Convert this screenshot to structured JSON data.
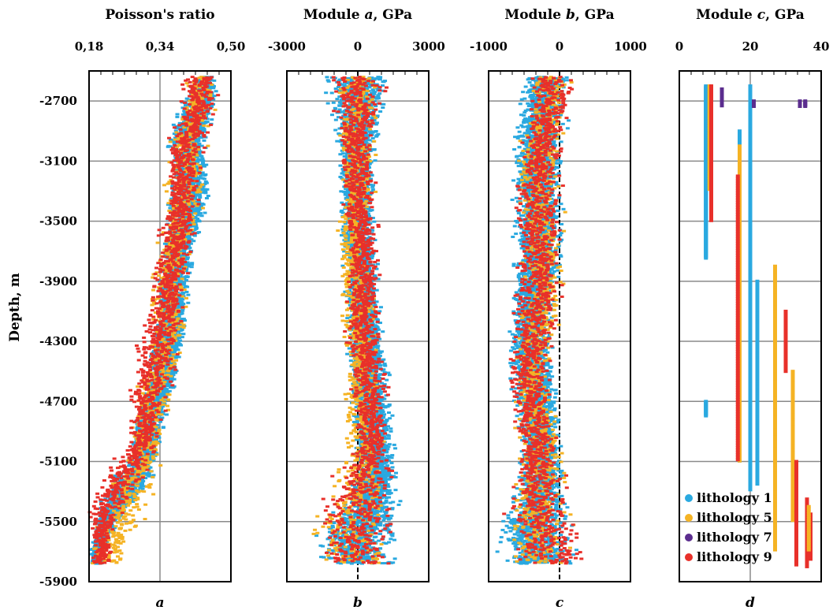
{
  "figure": {
    "ylabel": "Depth, m",
    "y_ticks": [
      -2700,
      -3100,
      -3500,
      -3900,
      -4300,
      -4700,
      -5100,
      -5500,
      -5900
    ],
    "y_tick_labels": [
      "-2700",
      "-3100",
      "-3500",
      "-3900",
      "-4300",
      "-4700",
      "-5100",
      "-5500",
      "-5900"
    ],
    "legend": {
      "placement": "bottom-right of panel d",
      "entries": [
        {
          "label": "lithology  1",
          "color": "#2aa9e0"
        },
        {
          "label": "lithology  5",
          "color": "#f5b324"
        },
        {
          "label": "lithology  7",
          "color": "#5b2d8e"
        },
        {
          "label": "lithology  9",
          "color": "#e8302a"
        }
      ]
    }
  },
  "chart_data": [
    {
      "type": "scatter",
      "panel": "a",
      "title_parts": [
        "Poisson's ratio"
      ],
      "xlim": [
        0.18,
        0.5
      ],
      "x_ticks": [
        0.18,
        0.34,
        0.5
      ],
      "x_tick_labels": [
        "0,18",
        "0,34",
        "0,50"
      ],
      "ylim": [
        -5900,
        -2500
      ],
      "grid": true,
      "series": [
        {
          "name": "lithology  1",
          "color": "#2aa9e0",
          "depth": [
            -2600,
            -2700,
            -2800,
            -2900,
            -3000,
            -3100,
            -3200,
            -3300,
            -3400,
            -3500,
            -3600,
            -3700,
            -3800,
            -3900,
            -4000,
            -4100,
            -4200,
            -4300,
            -4400,
            -4500,
            -4600,
            -4700,
            -4800,
            -4900,
            -5000,
            -5100,
            -5200,
            -5300,
            -5400,
            -5500,
            -5600,
            -5700,
            -5800
          ],
          "center": [
            0.44,
            0.43,
            0.42,
            0.41,
            0.4,
            0.4,
            0.41,
            0.41,
            0.4,
            0.4,
            0.39,
            0.38,
            0.38,
            0.37,
            0.37,
            0.37,
            0.36,
            0.36,
            0.35,
            0.35,
            0.34,
            0.33,
            0.32,
            0.31,
            0.31,
            0.3,
            0.28,
            0.26,
            0.24,
            0.22,
            0.21,
            0.2,
            0.2
          ],
          "spread": [
            0.03,
            0.04,
            0.05,
            0.05,
            0.05,
            0.05,
            0.05,
            0.05,
            0.05,
            0.05,
            0.04,
            0.04,
            0.04,
            0.04,
            0.04,
            0.04,
            0.04,
            0.04,
            0.04,
            0.04,
            0.04,
            0.04,
            0.04,
            0.04,
            0.04,
            0.04,
            0.05,
            0.05,
            0.04,
            0.03,
            0.02,
            0.02,
            0.02
          ]
        },
        {
          "name": "lithology  5",
          "color": "#f5b324",
          "depth": [
            -2700,
            -3000,
            -3300,
            -3600,
            -3900,
            -4200,
            -4500,
            -4800,
            -5100,
            -5400,
            -5700
          ],
          "center": [
            0.43,
            0.4,
            0.4,
            0.38,
            0.36,
            0.36,
            0.34,
            0.32,
            0.3,
            0.26,
            0.22
          ],
          "spread": [
            0.04,
            0.05,
            0.06,
            0.05,
            0.05,
            0.05,
            0.05,
            0.05,
            0.06,
            0.07,
            0.05
          ]
        },
        {
          "name": "lithology  9",
          "color": "#e8302a",
          "depth": [
            -2700,
            -3000,
            -3300,
            -3600,
            -3900,
            -4200,
            -4400,
            -4600,
            -4800,
            -5000,
            -5200,
            -5400,
            -5500,
            -5600,
            -5700,
            -5800
          ],
          "center": [
            0.43,
            0.4,
            0.39,
            0.38,
            0.36,
            0.35,
            0.33,
            0.32,
            0.31,
            0.3,
            0.26,
            0.22,
            0.21,
            0.21,
            0.21,
            0.21
          ],
          "spread": [
            0.05,
            0.05,
            0.05,
            0.05,
            0.05,
            0.06,
            0.06,
            0.06,
            0.05,
            0.05,
            0.06,
            0.05,
            0.04,
            0.03,
            0.03,
            0.03
          ]
        }
      ]
    },
    {
      "type": "scatter",
      "panel": "b",
      "title_parts": [
        "Module ",
        "a",
        ", GPa"
      ],
      "xlim": [
        -3000,
        3000
      ],
      "x_ticks": [
        -3000,
        0,
        3000
      ],
      "x_tick_labels": [
        "-3000",
        "0",
        "3000"
      ],
      "ylim": [
        -5900,
        -2500
      ],
      "grid": true,
      "zero_line": true,
      "series": [
        {
          "name": "lithology  1",
          "color": "#2aa9e0",
          "depth": [
            -2600,
            -2800,
            -3000,
            -3200,
            -3400,
            -3600,
            -3800,
            -4000,
            -4200,
            -4400,
            -4600,
            -4800,
            -5000,
            -5200,
            -5400,
            -5600,
            -5800
          ],
          "center": [
            0,
            0,
            0,
            0,
            0,
            0,
            100,
            200,
            300,
            400,
            500,
            600,
            700,
            800,
            500,
            0,
            0
          ],
          "spread": [
            1500,
            1200,
            1000,
            900,
            900,
            800,
            800,
            800,
            900,
            900,
            1000,
            1000,
            1000,
            1000,
            1500,
            2000,
            2000
          ]
        },
        {
          "name": "lithology  5",
          "color": "#f5b324",
          "depth": [
            -2700,
            -3000,
            -3300,
            -3600,
            -3800,
            -4100,
            -4400,
            -4700,
            -5000,
            -5300,
            -5600,
            -5800
          ],
          "center": [
            0,
            0,
            0,
            -200,
            -300,
            0,
            100,
            200,
            300,
            0,
            -500,
            0
          ],
          "spread": [
            1000,
            900,
            900,
            800,
            800,
            900,
            900,
            900,
            1000,
            1500,
            2000,
            2000
          ]
        },
        {
          "name": "lithology  9",
          "color": "#e8302a",
          "depth": [
            -2700,
            -3000,
            -3300,
            -3600,
            -3900,
            -4200,
            -4400,
            -4600,
            -4800,
            -5000,
            -5200,
            -5400,
            -5600,
            -5800
          ],
          "center": [
            0,
            0,
            0,
            200,
            300,
            200,
            400,
            500,
            500,
            600,
            300,
            0,
            0,
            0
          ],
          "spread": [
            1500,
            900,
            900,
            800,
            900,
            1000,
            1000,
            900,
            800,
            800,
            1500,
            2000,
            2000,
            2000
          ]
        }
      ]
    },
    {
      "type": "scatter",
      "panel": "c",
      "title_parts": [
        "Module ",
        "b",
        ", GPa"
      ],
      "xlim": [
        -1000,
        1000
      ],
      "x_ticks": [
        -1000,
        0,
        1000
      ],
      "x_tick_labels": [
        "-1000",
        "0",
        "1000"
      ],
      "ylim": [
        -5900,
        -2500
      ],
      "grid": true,
      "zero_line": true,
      "series": [
        {
          "name": "lithology  1",
          "color": "#2aa9e0",
          "depth": [
            -2600,
            -2800,
            -3000,
            -3200,
            -3400,
            -3600,
            -3800,
            -4000,
            -4200,
            -4400,
            -4600,
            -4800,
            -5000,
            -5200,
            -5400,
            -5600,
            -5800
          ],
          "center": [
            -200,
            -250,
            -300,
            -300,
            -300,
            -300,
            -300,
            -350,
            -400,
            -400,
            -350,
            -300,
            -250,
            -250,
            -300,
            -350,
            -300
          ],
          "spread": [
            350,
            400,
            400,
            400,
            400,
            400,
            400,
            350,
            350,
            350,
            350,
            350,
            350,
            400,
            500,
            600,
            600
          ]
        },
        {
          "name": "lithology  5",
          "color": "#f5b324",
          "depth": [
            -2700,
            -3000,
            -3300,
            -3600,
            -3900,
            -4200,
            -4500,
            -4800,
            -5100,
            -5400,
            -5700
          ],
          "center": [
            -150,
            -250,
            -300,
            -250,
            -200,
            -300,
            -400,
            -300,
            -250,
            -300,
            -300
          ],
          "spread": [
            350,
            350,
            400,
            400,
            350,
            350,
            350,
            350,
            400,
            500,
            600
          ]
        },
        {
          "name": "lithology  9",
          "color": "#e8302a",
          "depth": [
            -2700,
            -3000,
            -3300,
            -3600,
            -3900,
            -4200,
            -4400,
            -4600,
            -4800,
            -5000,
            -5200,
            -5400,
            -5600,
            -5800
          ],
          "center": [
            -100,
            -250,
            -300,
            -300,
            -300,
            -350,
            -400,
            -450,
            -350,
            -300,
            -300,
            -300,
            -150,
            -100
          ],
          "spread": [
            400,
            350,
            400,
            400,
            400,
            400,
            400,
            350,
            350,
            350,
            450,
            550,
            650,
            650
          ]
        }
      ]
    },
    {
      "type": "scatter",
      "panel": "d",
      "title_parts": [
        "Module ",
        "c",
        ", GPa"
      ],
      "xlim": [
        0,
        40
      ],
      "x_ticks": [
        0,
        20,
        40
      ],
      "x_tick_labels": [
        "0",
        "20",
        "40"
      ],
      "ylim": [
        -5900,
        -2500
      ],
      "grid": true,
      "columns": [
        {
          "series": "lithology  1",
          "x": 7.5,
          "depth_range": [
            -3750,
            -2600
          ],
          "density": "dense"
        },
        {
          "series": "lithology  1",
          "x": 17,
          "depth_range": [
            -5100,
            -2900
          ],
          "density": "dense"
        },
        {
          "series": "lithology  1",
          "x": 20,
          "depth_range": [
            -5300,
            -2600
          ],
          "density": "sparse"
        },
        {
          "series": "lithology  1",
          "x": 22,
          "depth_range": [
            -5250,
            -3900
          ],
          "density": "dense"
        },
        {
          "series": "lithology  1",
          "x": 27,
          "depth_range": [
            -5500,
            -3850
          ],
          "density": "dense"
        },
        {
          "series": "lithology  1",
          "x": 7.5,
          "depth_range": [
            -4800,
            -4700
          ],
          "density": "dense"
        },
        {
          "series": "lithology  5",
          "x": 8.5,
          "depth_range": [
            -3300,
            -2600
          ],
          "density": "sparse"
        },
        {
          "series": "lithology  5",
          "x": 17,
          "depth_range": [
            -5100,
            -3000
          ],
          "density": "sparse"
        },
        {
          "series": "lithology  5",
          "x": 27,
          "depth_range": [
            -5700,
            -3800
          ],
          "density": "sparse"
        },
        {
          "series": "lithology  5",
          "x": 32,
          "depth_range": [
            -5500,
            -4500
          ],
          "density": "sparse"
        },
        {
          "series": "lithology  9",
          "x": 9,
          "depth_range": [
            -3500,
            -2600
          ],
          "density": "sparse"
        },
        {
          "series": "lithology  9",
          "x": 16.5,
          "depth_range": [
            -5100,
            -3200
          ],
          "density": "sparse"
        },
        {
          "series": "lithology  9",
          "x": 30,
          "depth_range": [
            -4500,
            -4100
          ],
          "density": "sparse"
        },
        {
          "series": "lithology  9",
          "x": 33,
          "depth_range": [
            -5800,
            -5100
          ],
          "density": "sparse"
        },
        {
          "series": "lithology  9",
          "x": 36,
          "depth_range": [
            -5800,
            -5350
          ],
          "density": "dense"
        },
        {
          "series": "lithology  9",
          "x": 37,
          "depth_range": [
            -5750,
            -5450
          ],
          "density": "dense"
        },
        {
          "series": "lithology  5",
          "x": 36.5,
          "depth_range": [
            -5700,
            -5400
          ],
          "density": "sparse"
        },
        {
          "series": "lithology  7",
          "x": 12,
          "depth_range": [
            -2740,
            -2620
          ],
          "density": "sparse"
        },
        {
          "series": "lithology  7",
          "x": 34,
          "depth_range": [
            -2740,
            -2700
          ],
          "density": "dense"
        },
        {
          "series": "lithology  7",
          "x": 35.5,
          "depth_range": [
            -2740,
            -2700
          ],
          "density": "dense"
        },
        {
          "series": "lithology  7",
          "x": 21,
          "depth_range": [
            -2740,
            -2700
          ],
          "density": "dense"
        }
      ]
    }
  ],
  "panel_letters": [
    "a",
    "b",
    "c",
    "d"
  ]
}
